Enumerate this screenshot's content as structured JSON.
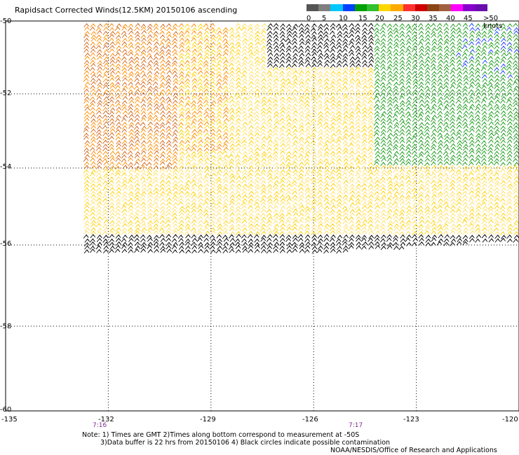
{
  "title": "Rapidsact Corrected Winds(12.5KM) 20150106 ascending",
  "legend": {
    "colors": [
      "#555555",
      "#7f7f7f",
      "#00c8ff",
      "#0040ff",
      "#00a000",
      "#30c030",
      "#ffd700",
      "#ffaa00",
      "#ff3030",
      "#d00000",
      "#8b4513",
      "#a06040",
      "#ff00ff",
      "#8800cc",
      "#6a0dad"
    ],
    "labels": [
      "0",
      "5",
      "10",
      "15",
      "20",
      "25",
      "30",
      "35",
      "40",
      "45",
      ">50 knots"
    ]
  },
  "axes": {
    "lat_labels": [
      "-50",
      "-52",
      "-54",
      "-56",
      "-58",
      "-60"
    ],
    "lon_labels": [
      "-135",
      "-132",
      "-129",
      "-126",
      "-123",
      "-120"
    ]
  },
  "times": [
    "7:16",
    "7:17"
  ],
  "notes": {
    "line1": "Note: 1) Times are GMT 2)Times along bottom correspond to measurement at -50S",
    "line2": "3)Data buffer is 22 hrs from 20150106 4) Black circles indicate possible contamination",
    "credit": "NOAA/NESDIS/Office of Research and Applications"
  },
  "swath": {
    "lon_range": [
      -132.7,
      -120
    ],
    "lat_range": [
      -50,
      -56.3
    ],
    "colors": {
      "brown_orange": "#d2691e",
      "orange": "#ff8c00",
      "yellow": "#ffd000",
      "pale_yellow": "#ffe066",
      "green": "#1a9a1a",
      "black": "#000000",
      "blue": "#2040ff"
    }
  }
}
